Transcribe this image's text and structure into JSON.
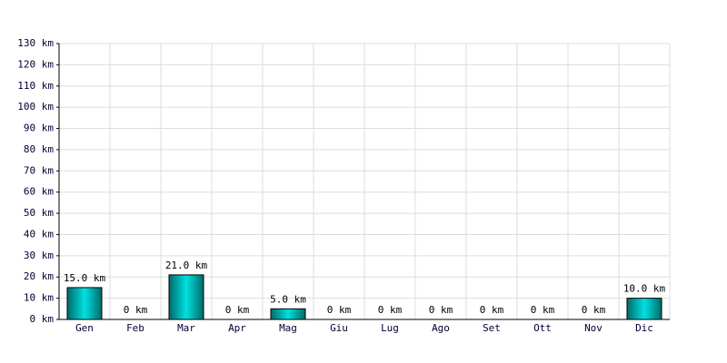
{
  "chart_data": {
    "type": "bar",
    "categories": [
      "Gen",
      "Feb",
      "Mar",
      "Apr",
      "Mag",
      "Giu",
      "Lug",
      "Ago",
      "Set",
      "Ott",
      "Nov",
      "Dic"
    ],
    "values": [
      15,
      0,
      21,
      0,
      5,
      0,
      0,
      0,
      0,
      0,
      0,
      10
    ],
    "value_labels": [
      "15.0 km",
      "0 km",
      "21.0 km",
      "0 km",
      "5.0 km",
      "0 km",
      "0 km",
      "0 km",
      "0 km",
      "0 km",
      "0 km",
      "10.0 km"
    ],
    "color": "#00e0e0",
    "ylim": [
      0,
      130
    ],
    "yticks": [
      {
        "value": 0,
        "label": "0 km"
      },
      {
        "value": 10,
        "label": "10 km"
      },
      {
        "value": 20,
        "label": "20 km"
      },
      {
        "value": 30,
        "label": "30 km"
      },
      {
        "value": 40,
        "label": "40 km"
      },
      {
        "value": 50,
        "label": "50 km"
      },
      {
        "value": 60,
        "label": "60 km"
      },
      {
        "value": 70,
        "label": "70 km"
      },
      {
        "value": 80,
        "label": "80 km"
      },
      {
        "value": 90,
        "label": "90 km"
      },
      {
        "value": 100,
        "label": "100 km"
      },
      {
        "value": 110,
        "label": "110 km"
      },
      {
        "value": 120,
        "label": "120 km"
      },
      {
        "value": 130,
        "label": "130 km"
      }
    ],
    "grid": true
  }
}
